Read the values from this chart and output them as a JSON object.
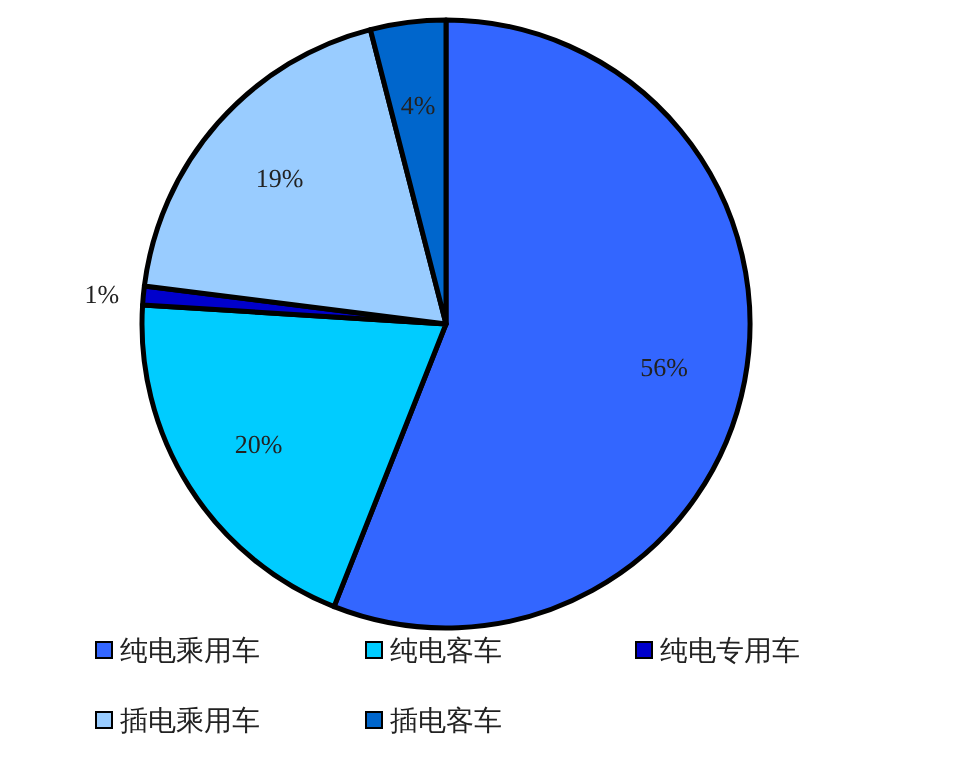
{
  "chart_data": {
    "type": "pie",
    "categories": [
      "纯电乘用车",
      "纯电客车",
      "纯电专用车",
      "插电乘用车",
      "插电客车"
    ],
    "values": [
      56,
      20,
      1,
      19,
      4
    ],
    "value_labels": [
      "56%",
      "20%",
      "1%",
      "19%",
      "4%"
    ],
    "colors": [
      "#3366ff",
      "#00ccff",
      "#0000cc",
      "#99ccff",
      "#0066cc"
    ],
    "legend": "bottom"
  }
}
